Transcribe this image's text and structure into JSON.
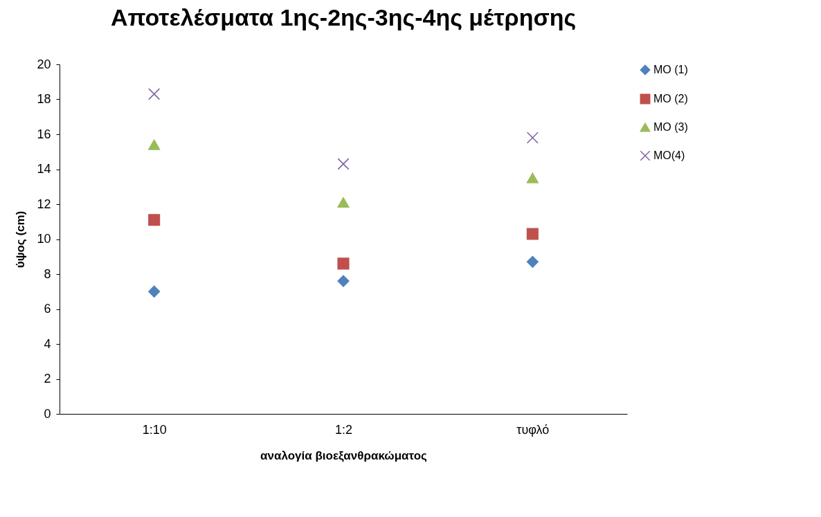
{
  "chart_data": {
    "type": "scatter",
    "title": "Αποτελέσματα 1ης-2ης-3ης-4ης μέτρησης",
    "xlabel": "αναλογία βιοεξανθρακώματος",
    "ylabel": "ύψος (cm)",
    "categories": [
      "1:10",
      "1:2",
      "τυφλό"
    ],
    "series": [
      {
        "name": "MO (1)",
        "color": "#4f81bd",
        "marker": "diamond",
        "values": [
          7.0,
          7.6,
          8.7
        ]
      },
      {
        "name": "MO (2)",
        "color": "#c0504d",
        "marker": "square",
        "values": [
          11.1,
          8.6,
          10.3
        ]
      },
      {
        "name": "MO (3)",
        "color": "#9bbb59",
        "marker": "triangle",
        "values": [
          15.4,
          12.1,
          13.5
        ]
      },
      {
        "name": "MO(4)",
        "color": "#8064a2",
        "marker": "cross",
        "values": [
          18.3,
          14.3,
          15.8
        ]
      }
    ],
    "ylim": [
      0,
      20
    ],
    "yticks": [
      0,
      2,
      4,
      6,
      8,
      10,
      12,
      14,
      16,
      18,
      20
    ],
    "legend": "right",
    "grid": false
  }
}
